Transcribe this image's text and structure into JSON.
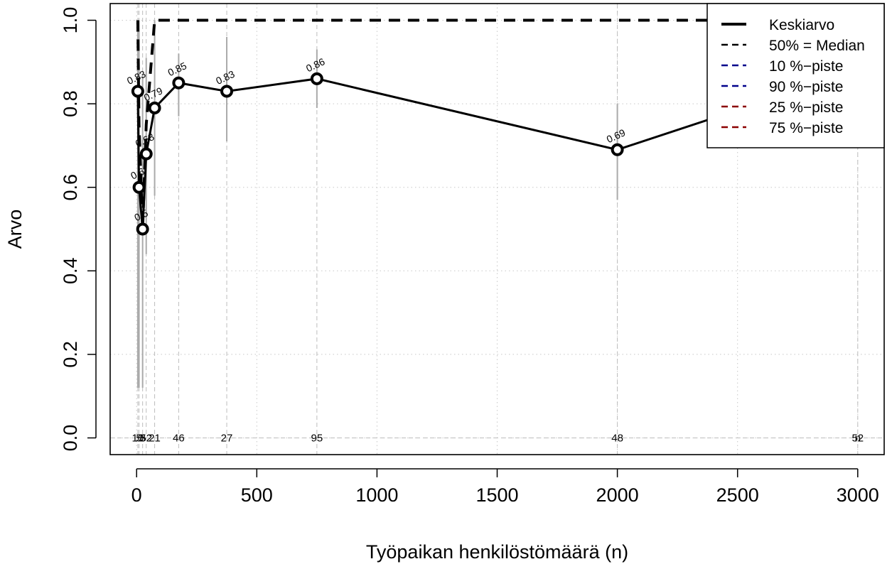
{
  "chart_data": {
    "type": "line",
    "title": "",
    "xlabel": "Työpaikan henkilöstömäärä (n)",
    "ylabel": "Arvo",
    "xlim": [
      -110,
      3110
    ],
    "ylim": [
      -0.04,
      1.04
    ],
    "xticks": [
      0,
      500,
      1000,
      1500,
      2000,
      2500,
      3000
    ],
    "xtick_labels": [
      "0",
      "500",
      "1000",
      "1500",
      "2000",
      "2500",
      "3000"
    ],
    "yticks": [
      0.0,
      0.2,
      0.4,
      0.6,
      0.8,
      1.0
    ],
    "ytick_labels": [
      "0.0",
      "0.2",
      "0.4",
      "0.6",
      "0.8",
      "1.0"
    ],
    "grid": true,
    "legend_position": "top-right",
    "legend": [
      {
        "label": "Keskiarvo",
        "color": "#000000",
        "style": "solid-thick"
      },
      {
        "label": "50% = Median",
        "color": "#000000",
        "style": "dashed"
      },
      {
        "label": "10 %−piste",
        "color": "#00008B",
        "style": "dashed"
      },
      {
        "label": "90 %−piste",
        "color": "#00008B",
        "style": "dashed"
      },
      {
        "label": "25 %−piste",
        "color": "#8B0000",
        "style": "dashed"
      },
      {
        "label": "75 %−piste",
        "color": "#8B0000",
        "style": "dashed"
      }
    ],
    "x": [
      5,
      10,
      25,
      40,
      75,
      175,
      375,
      750,
      2000,
      3000
    ],
    "series": [
      {
        "name": "Keskiarvo",
        "color": "#000000",
        "values": [
          0.83,
          0.6,
          0.5,
          0.68,
          0.79,
          0.85,
          0.83,
          0.86,
          0.69,
          0.88
        ],
        "value_labels": [
          "0.83",
          "0.6",
          "0.5",
          "0.68",
          "0.79",
          "0.85",
          "0.83",
          "0.86",
          "0.69",
          "0.88"
        ]
      },
      {
        "name": "50% = Median",
        "color": "#000000",
        "values": [
          1.0,
          0.75,
          0.5,
          0.75,
          1.0,
          1.0,
          1.0,
          1.0,
          1.0,
          1.0
        ]
      }
    ],
    "ranges": [
      {
        "x": 5,
        "low": 0.12,
        "high": 1.0
      },
      {
        "x": 10,
        "low": 0.12,
        "high": 1.0
      },
      {
        "x": 25,
        "low": 0.12,
        "high": 0.87
      },
      {
        "x": 40,
        "low": 0.44,
        "high": 0.91
      },
      {
        "x": 75,
        "low": 0.58,
        "high": 1.0
      },
      {
        "x": 175,
        "low": 0.77,
        "high": 0.92
      },
      {
        "x": 375,
        "low": 0.71,
        "high": 0.96
      },
      {
        "x": 750,
        "low": 0.79,
        "high": 0.93
      },
      {
        "x": 2000,
        "low": 0.57,
        "high": 0.8
      },
      {
        "x": 3000,
        "low": 0.8,
        "high": 0.95
      }
    ],
    "count_labels": [
      {
        "x": 5,
        "text": "10"
      },
      {
        "x": 10,
        "text": "5"
      },
      {
        "x": 25,
        "text": "8"
      },
      {
        "x": 40,
        "text": "52"
      },
      {
        "x": 75,
        "text": "21"
      },
      {
        "x": 175,
        "text": "46"
      },
      {
        "x": 375,
        "text": "27"
      },
      {
        "x": 750,
        "text": "95"
      },
      {
        "x": 2000,
        "text": "48"
      },
      {
        "x": 3000,
        "text": "52"
      },
      {
        "x": 3000,
        "text": "n"
      }
    ]
  }
}
